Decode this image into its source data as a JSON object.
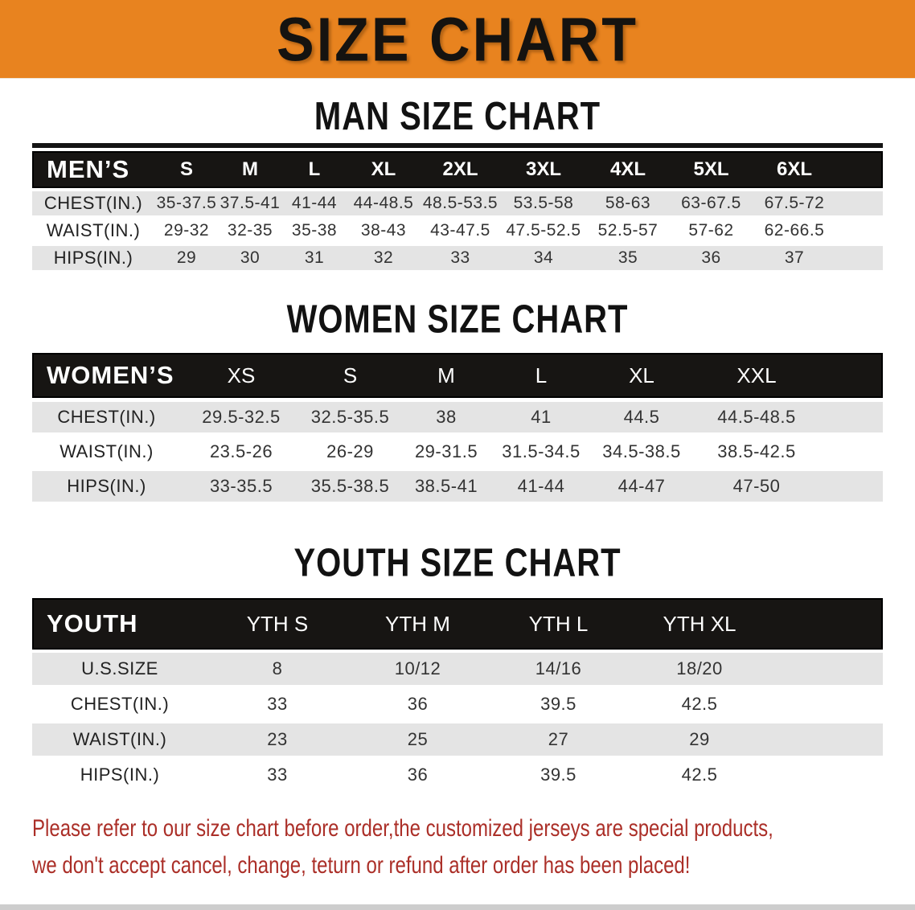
{
  "banner": {
    "title": "SIZE CHART"
  },
  "colors": {
    "banner_bg": "#E8831F",
    "header_bg": "#171513",
    "row_alt_bg": "#e4e4e4",
    "note_color": "#AB2F28"
  },
  "man": {
    "heading": "MAN SIZE CHART",
    "table": {
      "header": [
        "MEN’S",
        "S",
        "M",
        "L",
        "XL",
        "2XL",
        "3XL",
        "4XL",
        "5XL",
        "6XL",
        ""
      ],
      "rows": [
        [
          "CHEST(IN.)",
          "35-37.5",
          "37.5-41",
          "41-44",
          "44-48.5",
          "48.5-53.5",
          "53.5-58",
          "58-63",
          "63-67.5",
          "67.5-72",
          ""
        ],
        [
          "WAIST(IN.)",
          "29-32",
          "32-35",
          "35-38",
          "38-43",
          "43-47.5",
          "47.5-52.5",
          "52.5-57",
          "57-62",
          "62-66.5",
          ""
        ],
        [
          "HIPS(IN.)",
          "29",
          "30",
          "31",
          "32",
          "33",
          "34",
          "35",
          "36",
          "37",
          ""
        ]
      ]
    }
  },
  "women": {
    "heading": "WOMEN SIZE CHART",
    "table": {
      "header": [
        "WOMEN’S",
        "XS",
        "S",
        "M",
        "L",
        "XL",
        "XXL",
        ""
      ],
      "rows": [
        [
          "CHEST(IN.)",
          "29.5-32.5",
          "32.5-35.5",
          "38",
          "41",
          "44.5",
          "44.5-48.5",
          ""
        ],
        [
          "WAIST(IN.)",
          "23.5-26",
          "26-29",
          "29-31.5",
          "31.5-34.5",
          "34.5-38.5",
          "38.5-42.5",
          ""
        ],
        [
          "HIPS(IN.)",
          "33-35.5",
          "35.5-38.5",
          "38.5-41",
          "41-44",
          "44-47",
          "47-50",
          ""
        ]
      ]
    }
  },
  "youth": {
    "heading": "YOUTH SIZE CHART",
    "table": {
      "header": [
        "YOUTH",
        "YTH S",
        "YTH M",
        "YTH L",
        "YTH XL",
        ""
      ],
      "rows": [
        [
          "U.S.SIZE",
          "8",
          "10/12",
          "14/16",
          "18/20",
          ""
        ],
        [
          "CHEST(IN.)",
          "33",
          "36",
          "39.5",
          "42.5",
          ""
        ],
        [
          "WAIST(IN.)",
          "23",
          "25",
          "27",
          "29",
          ""
        ],
        [
          "HIPS(IN.)",
          "33",
          "36",
          "39.5",
          "42.5",
          ""
        ]
      ]
    }
  },
  "note": {
    "line1": "Please refer to our size chart before order,the customized jerseys are special products,",
    "line2": "we don't accept cancel, change, teturn or refund after order has been placed!"
  }
}
